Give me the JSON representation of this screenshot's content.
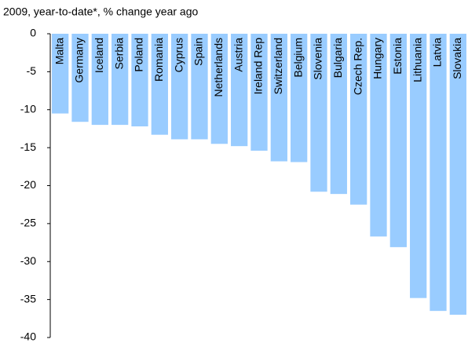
{
  "chart_data": {
    "type": "bar",
    "title": "2009, year-to-date*, % change year ago",
    "categories": [
      "Malta",
      "Germany",
      "Iceland",
      "Serbia",
      "Poland",
      "Romania",
      "Cyprus",
      "Spain",
      "Netherlands",
      "Austria",
      "Ireland Rep",
      "Switzerland",
      "Belgium",
      "Slovenia",
      "Bulgaria",
      "Czech Rep.",
      "Hungary",
      "Estonia",
      "Lithuania",
      "Latvia",
      "Slovakia"
    ],
    "values": [
      -10.5,
      -11.6,
      -12,
      -12,
      -12.2,
      -13.3,
      -13.9,
      -13.9,
      -14.5,
      -14.8,
      -15.4,
      -16.8,
      -16.9,
      -20.8,
      -21.1,
      -22.5,
      -26.7,
      -28.1,
      -34.8,
      -36.5,
      -37
    ],
    "color": "#99ccff",
    "ylim": [
      -40,
      0
    ],
    "yticks": [
      0,
      -5,
      -10,
      -15,
      -20,
      -25,
      -30,
      -35,
      -40
    ]
  }
}
